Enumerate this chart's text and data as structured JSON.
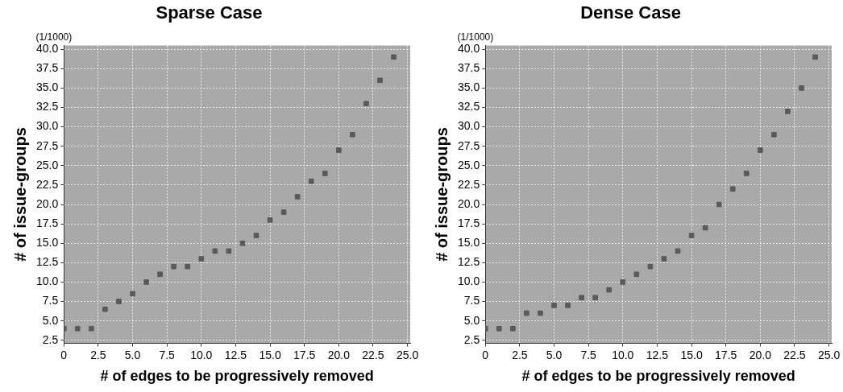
{
  "chart_data": [
    {
      "type": "scatter",
      "title": "Sparse Case",
      "xlabel": "# of edges to be progressively removed",
      "ylabel": "# of issue-groups",
      "annotations": [
        "(1/1000)"
      ],
      "marker": "square",
      "grid": true,
      "color": "#5a5a5a",
      "x": [
        0,
        1,
        2,
        3,
        4,
        5,
        6,
        7,
        8,
        9,
        10,
        11,
        12,
        13,
        14,
        15,
        16,
        17,
        18,
        19,
        20,
        21,
        22,
        23,
        24
      ],
      "values": [
        4,
        4,
        4,
        6.5,
        7.5,
        8.5,
        10,
        11,
        12,
        12,
        13,
        14,
        14,
        15,
        16,
        18,
        19,
        21,
        23,
        24,
        27,
        29,
        33,
        36,
        39
      ],
      "xlim": [
        0,
        25.2
      ],
      "ylim": [
        2.1,
        40.5
      ],
      "xticks": [
        0,
        2.5,
        {
          "value": 5,
          "label": "5.0"
        },
        7.5,
        {
          "value": 10,
          "label": "10.0"
        },
        12.5,
        {
          "value": 15,
          "label": "15.0"
        },
        17.5,
        {
          "value": 20,
          "label": "20.0"
        },
        22.5,
        {
          "value": 25,
          "label": "25.0"
        }
      ],
      "yticks": [
        2.5,
        {
          "value": 5,
          "label": "5.0"
        },
        7.5,
        {
          "value": 10,
          "label": "10.0"
        },
        12.5,
        {
          "value": 15,
          "label": "15.0"
        },
        17.5,
        {
          "value": 20,
          "label": "20.0"
        },
        22.5,
        {
          "value": 25,
          "label": "25.0"
        },
        27.5,
        {
          "value": 30,
          "label": "30.0"
        },
        32.5,
        {
          "value": 35,
          "label": "35.0"
        },
        37.5,
        {
          "value": 40,
          "label": "40.0"
        }
      ]
    },
    {
      "type": "scatter",
      "title": "Dense Case",
      "xlabel": "# of edges to be progressively removed",
      "ylabel": "# of issue-groups",
      "annotations": [
        "(1/1000)"
      ],
      "marker": "square",
      "grid": true,
      "color": "#5a5a5a",
      "x": [
        0,
        1,
        2,
        3,
        4,
        5,
        6,
        7,
        8,
        9,
        10,
        11,
        12,
        13,
        14,
        15,
        16,
        17,
        18,
        19,
        20,
        21,
        22,
        23,
        24
      ],
      "values": [
        4,
        4,
        4,
        6,
        6,
        7,
        7,
        8,
        8,
        9,
        10,
        11,
        12,
        13,
        14,
        16,
        17,
        20,
        22,
        24,
        27,
        29,
        32,
        35,
        39
      ],
      "xlim": [
        0,
        25.2
      ],
      "ylim": [
        2.1,
        40.5
      ],
      "xticks": [
        0,
        2.5,
        {
          "value": 5,
          "label": "5.0"
        },
        7.5,
        {
          "value": 10,
          "label": "10.0"
        },
        12.5,
        {
          "value": 15,
          "label": "15.0"
        },
        17.5,
        {
          "value": 20,
          "label": "20.0"
        },
        22.5,
        {
          "value": 25,
          "label": "25.0"
        }
      ],
      "yticks": [
        2.5,
        {
          "value": 5,
          "label": "5.0"
        },
        7.5,
        {
          "value": 10,
          "label": "10.0"
        },
        12.5,
        {
          "value": 15,
          "label": "15.0"
        },
        17.5,
        {
          "value": 20,
          "label": "20.0"
        },
        22.5,
        {
          "value": 25,
          "label": "25.0"
        },
        27.5,
        {
          "value": 30,
          "label": "30.0"
        },
        32.5,
        {
          "value": 35,
          "label": "35.0"
        },
        37.5,
        {
          "value": 40,
          "label": "40.0"
        }
      ]
    }
  ]
}
